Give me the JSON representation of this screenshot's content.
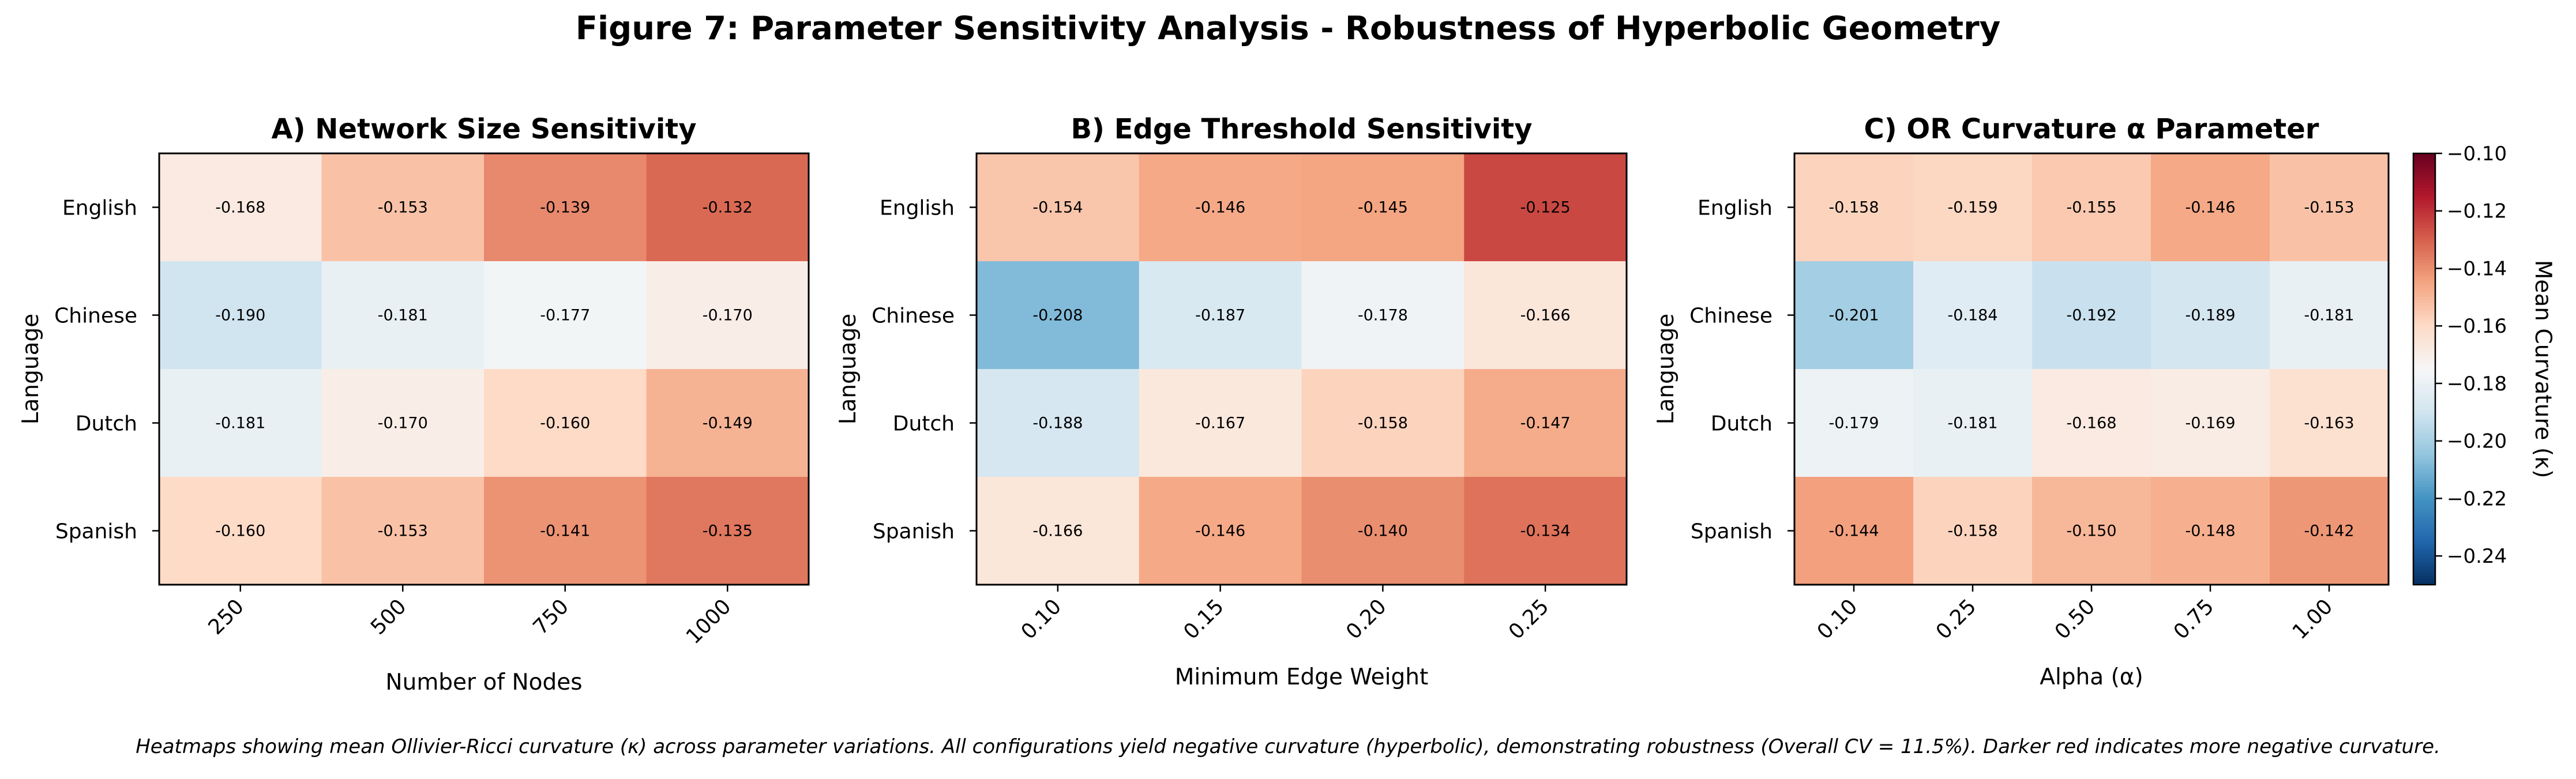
{
  "figure": {
    "title": "Figure 7: Parameter Sensitivity Analysis - Robustness of Hyperbolic Geometry",
    "caption": "Heatmaps showing mean Ollivier-Ricci curvature (κ) across parameter variations. All configurations yield negative curvature (hyperbolic), demonstrating robustness (Overall CV = 11.5%). Darker red indicates more negative curvature."
  },
  "chart_data": [
    {
      "type": "heatmap",
      "title": "A) Network Size Sensitivity",
      "xlabel": "Number of Nodes",
      "ylabel": "Language",
      "x": [
        "250",
        "500",
        "750",
        "1000"
      ],
      "y": [
        "English",
        "Chinese",
        "Dutch",
        "Spanish"
      ],
      "values": [
        [
          -0.168,
          -0.153,
          -0.139,
          -0.132
        ],
        [
          -0.19,
          -0.181,
          -0.177,
          -0.17
        ],
        [
          -0.181,
          -0.17,
          -0.16,
          -0.149
        ],
        [
          -0.16,
          -0.153,
          -0.141,
          -0.135
        ]
      ],
      "labels": [
        [
          "-0.168",
          "-0.153",
          "-0.139",
          "-0.132"
        ],
        [
          "-0.190",
          "-0.181",
          "-0.177",
          "-0.170"
        ],
        [
          "-0.181",
          "-0.170",
          "-0.160",
          "-0.149"
        ],
        [
          "-0.160",
          "-0.153",
          "-0.141",
          "-0.135"
        ]
      ]
    },
    {
      "type": "heatmap",
      "title": "B) Edge Threshold Sensitivity",
      "xlabel": "Minimum Edge Weight",
      "ylabel": "Language",
      "x": [
        "0.10",
        "0.15",
        "0.20",
        "0.25"
      ],
      "y": [
        "English",
        "Chinese",
        "Dutch",
        "Spanish"
      ],
      "values": [
        [
          -0.154,
          -0.146,
          -0.145,
          -0.125
        ],
        [
          -0.208,
          -0.187,
          -0.178,
          -0.166
        ],
        [
          -0.188,
          -0.167,
          -0.158,
          -0.147
        ],
        [
          -0.166,
          -0.146,
          -0.14,
          -0.134
        ]
      ],
      "labels": [
        [
          "-0.154",
          "-0.146",
          "-0.145",
          "-0.125"
        ],
        [
          "-0.208",
          "-0.187",
          "-0.178",
          "-0.166"
        ],
        [
          "-0.188",
          "-0.167",
          "-0.158",
          "-0.147"
        ],
        [
          "-0.166",
          "-0.146",
          "-0.140",
          "-0.134"
        ]
      ]
    },
    {
      "type": "heatmap",
      "title": "C) OR Curvature α Parameter",
      "xlabel": "Alpha (α)",
      "ylabel": "Language",
      "x": [
        "0.10",
        "0.25",
        "0.50",
        "0.75",
        "1.00"
      ],
      "y": [
        "English",
        "Chinese",
        "Dutch",
        "Spanish"
      ],
      "values": [
        [
          -0.158,
          -0.159,
          -0.155,
          -0.146,
          -0.153
        ],
        [
          -0.201,
          -0.184,
          -0.192,
          -0.189,
          -0.181
        ],
        [
          -0.179,
          -0.181,
          -0.168,
          -0.169,
          -0.163
        ],
        [
          -0.144,
          -0.158,
          -0.15,
          -0.148,
          -0.142
        ]
      ],
      "labels": [
        [
          "-0.158",
          "-0.159",
          "-0.155",
          "-0.146",
          "-0.153"
        ],
        [
          "-0.201",
          "-0.184",
          "-0.192",
          "-0.189",
          "-0.181"
        ],
        [
          "-0.179",
          "-0.181",
          "-0.168",
          "-0.169",
          "-0.163"
        ],
        [
          "-0.144",
          "-0.158",
          "-0.150",
          "-0.148",
          "-0.142"
        ]
      ]
    }
  ],
  "colorbar": {
    "label": "Mean Curvature (κ)",
    "vmin": -0.25,
    "vmax": -0.1,
    "colormap": "RdBu_r",
    "ticks": [
      -0.1,
      -0.12,
      -0.14,
      -0.16,
      -0.18,
      -0.2,
      -0.22,
      -0.24
    ],
    "tick_labels": [
      "−0.10",
      "−0.12",
      "−0.14",
      "−0.16",
      "−0.18",
      "−0.20",
      "−0.22",
      "−0.24"
    ]
  }
}
